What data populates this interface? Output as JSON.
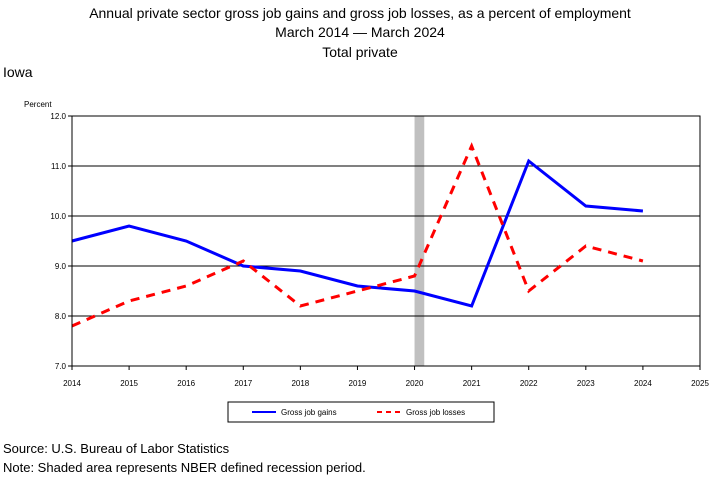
{
  "chart_data": {
    "type": "line",
    "title_lines": [
      "Annual private sector gross job gains and gross job losses, as a percent of employment",
      "March 2014 — March 2024",
      "Total private"
    ],
    "state": "Iowa",
    "ylabel": "Percent",
    "xlabel": "",
    "xlim": [
      2014,
      2025
    ],
    "ylim": [
      7.0,
      12.0
    ],
    "x_ticks": [
      "2014",
      "2015",
      "2016",
      "2017",
      "2018",
      "2019",
      "2020",
      "2021",
      "2022",
      "2023",
      "2024",
      "2025"
    ],
    "y_ticks": [
      "7.0",
      "8.0",
      "9.0",
      "10.0",
      "11.0",
      "12.0"
    ],
    "grid": "horizontal",
    "recession": {
      "start": 2020,
      "end": 2020.17,
      "color": "#c0c0c0"
    },
    "x": [
      2014,
      2015,
      2016,
      2017,
      2018,
      2019,
      2020,
      2021,
      2022,
      2023,
      2024
    ],
    "series": [
      {
        "name": "Gross job gains",
        "color": "#0000ff",
        "style": "solid",
        "values": [
          9.5,
          9.8,
          9.5,
          9.0,
          8.9,
          8.6,
          8.5,
          8.2,
          11.1,
          10.2,
          10.1
        ]
      },
      {
        "name": "Gross job losses",
        "color": "#ff0000",
        "style": "dashed",
        "values": [
          7.8,
          8.3,
          8.6,
          9.1,
          8.2,
          8.5,
          8.8,
          11.4,
          8.5,
          9.4,
          9.1
        ]
      }
    ],
    "legend_position": "bottom-center",
    "source": "Source: U.S. Bureau of Labor Statistics",
    "note": "Note: Shaded area represents NBER defined recession period."
  }
}
